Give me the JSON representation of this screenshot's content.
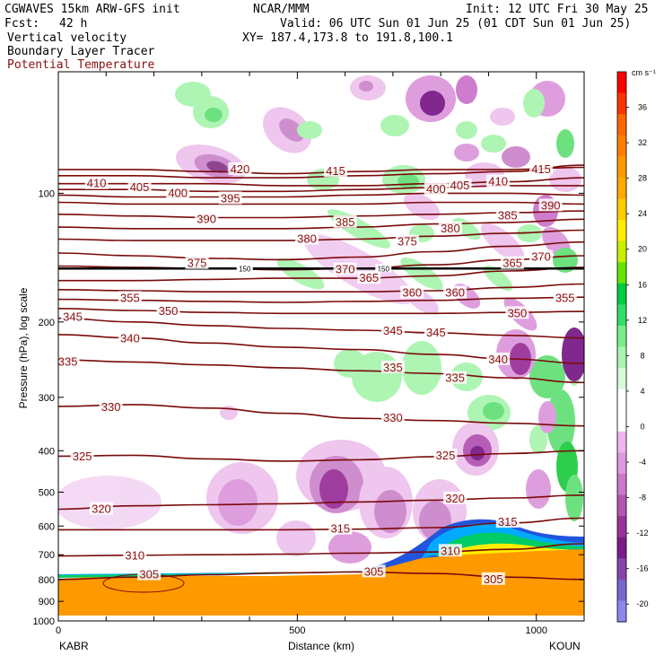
{
  "header": {
    "model": "CGWAVES 15km ARW-GFS init",
    "fcst_label": "Fcst:",
    "fcst_value": "42 h",
    "org": "NCAR/MMM",
    "init": "Init: 12 UTC Fri 30 May 25",
    "valid": "Valid: 06 UTC Sun 01 Jun 25 (01 CDT Sun 01 Jun 25)",
    "xy": "XY= 187.4,173.8 to 191.8,100.1",
    "field1": "Vertical velocity",
    "field2": "Boundary Layer Tracer",
    "field3": "Potential Temperature"
  },
  "colors": {
    "theta_contour": "#7a0a0a",
    "theta_label": "#8b1010"
  },
  "chart_data": {
    "type": "heatmap",
    "ylabel": "Pressure (hPa), log scale",
    "xlabel": "Distance (km)",
    "x_ticks": [
      "0",
      "500",
      "1000"
    ],
    "x_tick_values": [
      0,
      500,
      1000
    ],
    "xlim": [
      0,
      1100
    ],
    "y_ticks": [
      "100",
      "200",
      "300",
      "400",
      "500",
      "600",
      "700",
      "800",
      "900",
      "1000"
    ],
    "y_tick_values": [
      100,
      200,
      300,
      400,
      500,
      600,
      700,
      800,
      900,
      1000
    ],
    "ylim": [
      1000,
      50
    ],
    "y_scale": "log",
    "left_station": "KABR",
    "right_station": "KOUN",
    "colorbar": {
      "unit": "cm s⁻¹",
      "labels": [
        "36",
        "32",
        "28",
        "24",
        "20",
        "16",
        "12",
        "8",
        "4",
        "0",
        "-4",
        "-8",
        "-12",
        "-16",
        "-20"
      ],
      "label_values": [
        36,
        32,
        28,
        24,
        20,
        16,
        12,
        8,
        4,
        0,
        -4,
        -8,
        -12,
        -16,
        -20
      ],
      "colors": [
        "#ff0000",
        "#ff3300",
        "#ff6600",
        "#ff8000",
        "#ff9900",
        "#ffaa00",
        "#ffcc00",
        "#ffee00",
        "#c8f000",
        "#64e600",
        "#00cc44",
        "#33dd66",
        "#77ee88",
        "#aaf5b0",
        "#d8fad8",
        "#ffffff",
        "#ffffff",
        "#eeb8ee",
        "#dd99dd",
        "#cc77cc",
        "#b455b4",
        "#9a3399",
        "#7a1d88",
        "#8844aa",
        "#7766cc",
        "#8a88ee"
      ]
    },
    "theta_labels": [
      {
        "text": "420",
        "x": 380,
        "p": 88
      },
      {
        "text": "415",
        "x": 580,
        "p": 89
      },
      {
        "text": "415",
        "x": 1010,
        "p": 88
      },
      {
        "text": "410",
        "x": 80,
        "p": 95
      },
      {
        "text": "405",
        "x": 170,
        "p": 97
      },
      {
        "text": "400",
        "x": 250,
        "p": 100
      },
      {
        "text": "395",
        "x": 360,
        "p": 103
      },
      {
        "text": "400",
        "x": 790,
        "p": 98
      },
      {
        "text": "405",
        "x": 840,
        "p": 96
      },
      {
        "text": "410",
        "x": 920,
        "p": 94
      },
      {
        "text": "390",
        "x": 310,
        "p": 115
      },
      {
        "text": "385",
        "x": 600,
        "p": 117
      },
      {
        "text": "385",
        "x": 940,
        "p": 113
      },
      {
        "text": "390",
        "x": 1030,
        "p": 107
      },
      {
        "text": "380",
        "x": 520,
        "p": 128
      },
      {
        "text": "380",
        "x": 820,
        "p": 121
      },
      {
        "text": "375",
        "x": 730,
        "p": 130
      },
      {
        "text": "375",
        "x": 290,
        "p": 146
      },
      {
        "text": "370",
        "x": 600,
        "p": 151
      },
      {
        "text": "370",
        "x": 1010,
        "p": 141
      },
      {
        "text": "365",
        "x": 650,
        "p": 158
      },
      {
        "text": "365",
        "x": 950,
        "p": 146
      },
      {
        "text": "355",
        "x": 150,
        "p": 176
      },
      {
        "text": "350",
        "x": 230,
        "p": 189
      },
      {
        "text": "360",
        "x": 740,
        "p": 171
      },
      {
        "text": "360",
        "x": 830,
        "p": 171
      },
      {
        "text": "355",
        "x": 1060,
        "p": 176
      },
      {
        "text": "350",
        "x": 960,
        "p": 191
      },
      {
        "text": "345",
        "x": 30,
        "p": 195
      },
      {
        "text": "340",
        "x": 150,
        "p": 219
      },
      {
        "text": "345",
        "x": 700,
        "p": 210
      },
      {
        "text": "345",
        "x": 790,
        "p": 212
      },
      {
        "text": "340",
        "x": 920,
        "p": 245
      },
      {
        "text": "335",
        "x": 20,
        "p": 248
      },
      {
        "text": "335",
        "x": 700,
        "p": 256
      },
      {
        "text": "335",
        "x": 830,
        "p": 271
      },
      {
        "text": "330",
        "x": 110,
        "p": 317
      },
      {
        "text": "330",
        "x": 700,
        "p": 336
      },
      {
        "text": "325",
        "x": 50,
        "p": 413
      },
      {
        "text": "325",
        "x": 810,
        "p": 411
      },
      {
        "text": "320",
        "x": 90,
        "p": 548
      },
      {
        "text": "320",
        "x": 830,
        "p": 518
      },
      {
        "text": "315",
        "x": 590,
        "p": 610
      },
      {
        "text": "315",
        "x": 940,
        "p": 588
      },
      {
        "text": "310",
        "x": 160,
        "p": 705
      },
      {
        "text": "310",
        "x": 820,
        "p": 687
      },
      {
        "text": "305",
        "x": 190,
        "p": 780
      },
      {
        "text": "305",
        "x": 660,
        "p": 768
      },
      {
        "text": "305",
        "x": 910,
        "p": 800
      }
    ],
    "tracer_labels": [
      {
        "text": "150",
        "x": 390,
        "p": 150
      },
      {
        "text": "150",
        "x": 680,
        "p": 150
      }
    ],
    "theta_contours": [
      {
        "theta": 420,
        "p": [
          88,
          88,
          89,
          90,
          89,
          88,
          88,
          87
        ]
      },
      {
        "theta": 415,
        "p": [
          91,
          91,
          92,
          92,
          91,
          90,
          89,
          86
        ]
      },
      {
        "theta": 410,
        "p": [
          95,
          95,
          95,
          96,
          96,
          95,
          94,
          92
        ]
      },
      {
        "theta": 405,
        "p": [
          98,
          98,
          99,
          99,
          98,
          97,
          96,
          96
        ]
      },
      {
        "theta": 400,
        "p": [
          101,
          102,
          102,
          102,
          101,
          100,
          100,
          101
        ]
      },
      {
        "theta": 395,
        "p": [
          105,
          106,
          106,
          106,
          106,
          105,
          105,
          106
        ]
      },
      {
        "theta": 390,
        "p": [
          112,
          113,
          114,
          114,
          113,
          112,
          111,
          110
        ]
      },
      {
        "theta": 385,
        "p": [
          120,
          121,
          121,
          121,
          120,
          118,
          117,
          115
        ]
      },
      {
        "theta": 380,
        "p": [
          128,
          129,
          129,
          129,
          128,
          126,
          124,
          122
        ]
      },
      {
        "theta": 375,
        "p": [
          138,
          140,
          142,
          143,
          141,
          137,
          133,
          130
        ]
      },
      {
        "theta": 370,
        "p": [
          148,
          149,
          150,
          151,
          150,
          147,
          143,
          140
        ]
      },
      {
        "theta": 365,
        "p": [
          160,
          160,
          159,
          158,
          158,
          156,
          152,
          149
        ]
      },
      {
        "theta": 360,
        "p": [
          168,
          169,
          170,
          170,
          170,
          169,
          166,
          163
        ]
      },
      {
        "theta": 355,
        "p": [
          177,
          178,
          179,
          180,
          179,
          178,
          176,
          175
        ]
      },
      {
        "theta": 350,
        "p": [
          186,
          188,
          190,
          191,
          191,
          191,
          190,
          189
        ]
      },
      {
        "theta": 345,
        "p": [
          196,
          200,
          204,
          207,
          209,
          212,
          215,
          218
        ]
      },
      {
        "theta": 340,
        "p": [
          214,
          218,
          224,
          229,
          232,
          238,
          244,
          250
        ]
      },
      {
        "theta": 335,
        "p": [
          245,
          248,
          252,
          256,
          260,
          264,
          270,
          277
        ]
      },
      {
        "theta": 330,
        "p": [
          315,
          312,
          318,
          327,
          336,
          340,
          345,
          350
        ]
      },
      {
        "theta": 325,
        "p": [
          412,
          410,
          418,
          423,
          420,
          413,
          406,
          400
        ]
      },
      {
        "theta": 320,
        "p": [
          548,
          538,
          535,
          532,
          527,
          522,
          516,
          508
        ]
      },
      {
        "theta": 315,
        "p": [
          612,
          612,
          612,
          612,
          610,
          605,
          590,
          575
        ]
      },
      {
        "theta": 310,
        "p": [
          705,
          702,
          700,
          698,
          694,
          690,
          680,
          660
        ]
      },
      {
        "theta": 305,
        "p": [
          800,
          790,
          780,
          772,
          768,
          775,
          790,
          800
        ]
      }
    ]
  }
}
